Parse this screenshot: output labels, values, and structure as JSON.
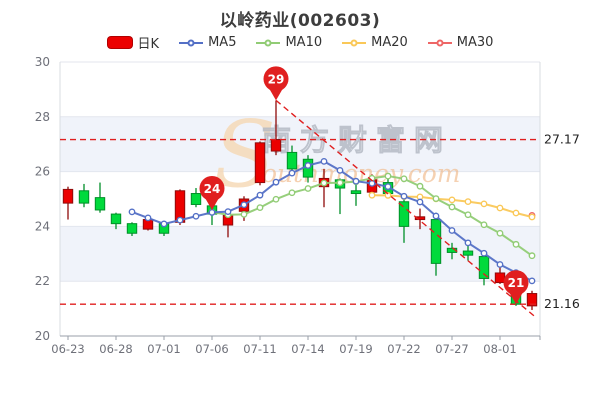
{
  "title": "以岭药业(002603)",
  "legend": {
    "items": [
      {
        "label": "日K",
        "marker": "rect",
        "color": "#ec0000"
      },
      {
        "label": "MA5",
        "marker": "line-circle",
        "color": "#5470c6"
      },
      {
        "label": "MA10",
        "marker": "line-circle",
        "color": "#91cc75"
      },
      {
        "label": "MA20",
        "marker": "line-circle",
        "color": "#fac858"
      },
      {
        "label": "MA30",
        "marker": "line-circle",
        "color": "#ee6666"
      }
    ]
  },
  "watermark": {
    "swirl": "S",
    "text_cn": "南方财富网",
    "text_en": "outhmoney.com"
  },
  "chart_data": {
    "type": "candlestick",
    "title": "以岭药业(002603)",
    "x_tick_labels": [
      "06-23",
      "06-28",
      "07-01",
      "07-06",
      "07-11",
      "07-14",
      "07-19",
      "07-22",
      "07-27",
      "08-01"
    ],
    "x_label_every": 3,
    "y_ticks": [
      20,
      22,
      24,
      26,
      28,
      30
    ],
    "ylim": [
      20,
      30
    ],
    "grid": true,
    "legend_position": "top",
    "candles_ohlc_format": "[open, close, low, high]",
    "candles": [
      [
        24.85,
        25.35,
        24.25,
        25.45
      ],
      [
        25.3,
        24.85,
        24.7,
        25.55
      ],
      [
        25.05,
        24.6,
        24.5,
        25.6
      ],
      [
        24.45,
        24.1,
        23.9,
        24.5
      ],
      [
        24.1,
        23.75,
        23.65,
        24.15
      ],
      [
        23.9,
        24.25,
        23.85,
        24.3
      ],
      [
        24.1,
        23.75,
        23.65,
        24.15
      ],
      [
        24.15,
        25.3,
        24.05,
        25.35
      ],
      [
        25.2,
        24.8,
        24.7,
        25.4
      ],
      [
        24.75,
        24.45,
        24.05,
        24.8
      ],
      [
        24.05,
        24.4,
        23.6,
        24.45
      ],
      [
        24.55,
        25.0,
        24.2,
        25.1
      ],
      [
        25.6,
        27.05,
        25.5,
        27.1
      ],
      [
        26.75,
        27.17,
        26.6,
        28.6
      ],
      [
        26.7,
        26.1,
        25.85,
        26.95
      ],
      [
        26.45,
        25.8,
        25.6,
        26.6
      ],
      [
        25.45,
        25.75,
        24.7,
        26.1
      ],
      [
        25.7,
        25.4,
        24.45,
        25.75
      ],
      [
        25.3,
        25.2,
        24.75,
        25.7
      ],
      [
        25.25,
        25.7,
        25.1,
        25.9
      ],
      [
        25.6,
        25.2,
        25.05,
        25.9
      ],
      [
        24.9,
        24.0,
        23.4,
        25.0
      ],
      [
        24.25,
        24.35,
        23.9,
        24.65
      ],
      [
        24.25,
        22.65,
        22.2,
        24.5
      ],
      [
        23.2,
        23.05,
        22.8,
        23.4
      ],
      [
        23.1,
        22.95,
        22.75,
        23.3
      ],
      [
        22.9,
        22.1,
        21.85,
        23.05
      ],
      [
        21.95,
        22.3,
        21.9,
        22.65
      ],
      [
        21.6,
        21.16,
        21.1,
        21.7
      ],
      [
        21.1,
        21.55,
        20.95,
        21.65
      ]
    ],
    "moving_averages": [
      {
        "name": "MA5",
        "window": 5,
        "color": "#5470c6"
      },
      {
        "name": "MA10",
        "window": 10,
        "color": "#91cc75"
      },
      {
        "name": "MA20",
        "window": 20,
        "color": "#fac858"
      },
      {
        "name": "MA30",
        "window": 30,
        "color": "#ee6666"
      }
    ],
    "reference_lines": [
      {
        "value": 27.17,
        "label": "27.17"
      },
      {
        "value": 21.16,
        "label": "21.16"
      }
    ],
    "mark_points": [
      {
        "label": "29",
        "index": 13,
        "price": 28.6
      },
      {
        "label": "24",
        "index": 9,
        "price": 24.6
      },
      {
        "label": "21",
        "index": 28,
        "price": 21.16
      }
    ],
    "trend_line": {
      "from": {
        "index": 13,
        "price": 28.6
      },
      "to": {
        "index": 29.2,
        "price": 20.7
      }
    },
    "colors": {
      "up": "#ec0000",
      "up_border": "#8f0b0b",
      "down": "#00da3c",
      "down_border": "#008f28",
      "band": "#f0f3fa",
      "grid": "#e3e6ee",
      "plot_border": "#d9dce2",
      "axis_line": "#999fa8",
      "tick_text": "#6e7079",
      "ref_label": "#222222",
      "dashed": "#e01f1f",
      "pin": "#e01f1f",
      "pin_text": "#ffffff",
      "watermark_cn": "#b5bac4",
      "watermark_en": "#f0b480",
      "watermark_swirl": "#f6d8b4"
    }
  }
}
